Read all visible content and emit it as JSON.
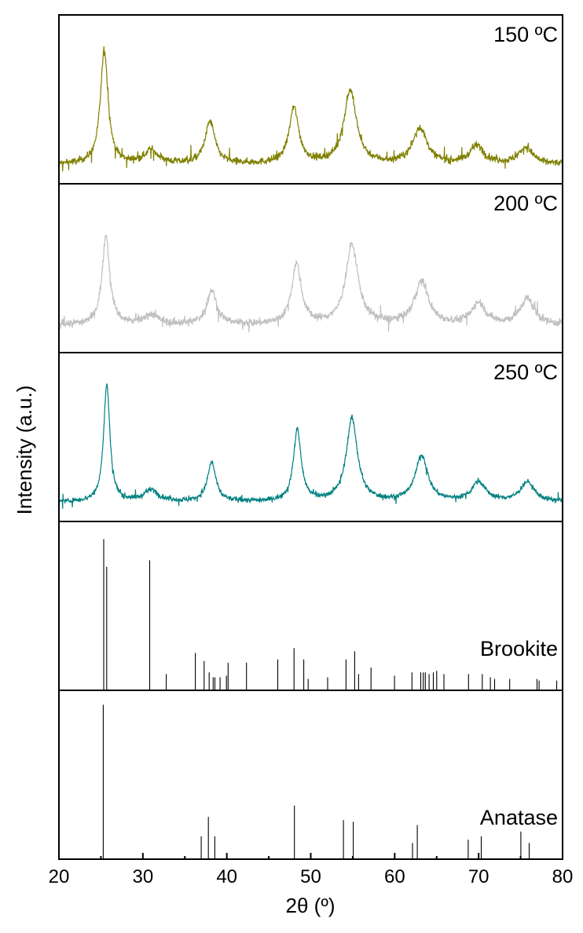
{
  "chart_data": {
    "type": "line",
    "xlabel": "2θ (º)",
    "ylabel": "Intensity (a.u.)",
    "xlim": [
      20,
      80
    ],
    "xticks": [
      "20",
      "30",
      "40",
      "50",
      "60",
      "70",
      "80"
    ],
    "grid": false,
    "legend": "none",
    "panels": [
      {
        "label": "150 ºC",
        "kind": "pattern",
        "color": "#808000",
        "baseline": 0.12,
        "noise": 0.035,
        "peaks": [
          [
            25.4,
            0.7,
            0.55
          ],
          [
            31.0,
            0.08,
            1.0
          ],
          [
            38.0,
            0.26,
            0.7
          ],
          [
            48.0,
            0.34,
            0.7
          ],
          [
            54.7,
            0.45,
            0.9
          ],
          [
            63.0,
            0.22,
            1.0
          ],
          [
            69.8,
            0.11,
            1.0
          ],
          [
            75.6,
            0.1,
            1.0
          ]
        ]
      },
      {
        "label": "200 ºC",
        "kind": "pattern",
        "color": "#c0c0c0",
        "baseline": 0.17,
        "noise": 0.04,
        "peaks": [
          [
            25.6,
            0.55,
            0.55
          ],
          [
            31.0,
            0.06,
            1.0
          ],
          [
            38.2,
            0.21,
            0.7
          ],
          [
            48.3,
            0.37,
            0.7
          ],
          [
            54.9,
            0.49,
            0.9
          ],
          [
            63.2,
            0.26,
            1.0
          ],
          [
            70.0,
            0.13,
            1.0
          ],
          [
            75.8,
            0.16,
            1.0
          ]
        ]
      },
      {
        "label": "250 ºC",
        "kind": "pattern",
        "color": "#008080",
        "baseline": 0.12,
        "noise": 0.025,
        "peaks": [
          [
            25.7,
            0.72,
            0.45
          ],
          [
            31.0,
            0.07,
            1.0
          ],
          [
            38.2,
            0.24,
            0.6
          ],
          [
            48.4,
            0.44,
            0.55
          ],
          [
            54.9,
            0.51,
            0.8
          ],
          [
            63.2,
            0.28,
            0.9
          ],
          [
            70.0,
            0.12,
            1.0
          ],
          [
            75.8,
            0.12,
            1.0
          ]
        ]
      },
      {
        "label": "Brookite",
        "kind": "sticks",
        "color": "#000000",
        "sticks": [
          [
            25.34,
            0.93
          ],
          [
            25.69,
            0.76
          ],
          [
            30.81,
            0.8
          ],
          [
            32.79,
            0.1
          ],
          [
            36.25,
            0.23
          ],
          [
            37.3,
            0.18
          ],
          [
            37.9,
            0.11
          ],
          [
            38.37,
            0.08
          ],
          [
            38.58,
            0.08
          ],
          [
            39.2,
            0.08
          ],
          [
            39.96,
            0.09
          ],
          [
            40.15,
            0.17
          ],
          [
            42.34,
            0.17
          ],
          [
            46.07,
            0.19
          ],
          [
            48.01,
            0.26
          ],
          [
            49.17,
            0.19
          ],
          [
            49.69,
            0.07
          ],
          [
            52.01,
            0.08
          ],
          [
            54.2,
            0.19
          ],
          [
            55.23,
            0.24
          ],
          [
            55.7,
            0.1
          ],
          [
            57.18,
            0.14
          ],
          [
            59.98,
            0.09
          ],
          [
            62.06,
            0.11
          ],
          [
            63.1,
            0.11
          ],
          [
            63.4,
            0.11
          ],
          [
            63.65,
            0.11
          ],
          [
            64.1,
            0.1
          ],
          [
            64.6,
            0.11
          ],
          [
            65.0,
            0.12
          ],
          [
            65.87,
            0.1
          ],
          [
            68.8,
            0.1
          ],
          [
            70.43,
            0.1
          ],
          [
            71.4,
            0.08
          ],
          [
            71.9,
            0.07
          ],
          [
            73.7,
            0.07
          ],
          [
            76.96,
            0.07
          ],
          [
            77.2,
            0.06
          ],
          [
            79.3,
            0.06
          ]
        ]
      },
      {
        "label": "Anatase",
        "kind": "sticks",
        "color": "#000000",
        "sticks": [
          [
            25.28,
            0.95
          ],
          [
            36.95,
            0.14
          ],
          [
            37.8,
            0.26
          ],
          [
            38.57,
            0.14
          ],
          [
            48.05,
            0.33
          ],
          [
            53.89,
            0.24
          ],
          [
            55.06,
            0.23
          ],
          [
            62.12,
            0.1
          ],
          [
            62.69,
            0.21
          ],
          [
            68.76,
            0.12
          ],
          [
            70.31,
            0.14
          ],
          [
            75.03,
            0.17
          ],
          [
            76.02,
            0.1
          ]
        ]
      }
    ]
  }
}
